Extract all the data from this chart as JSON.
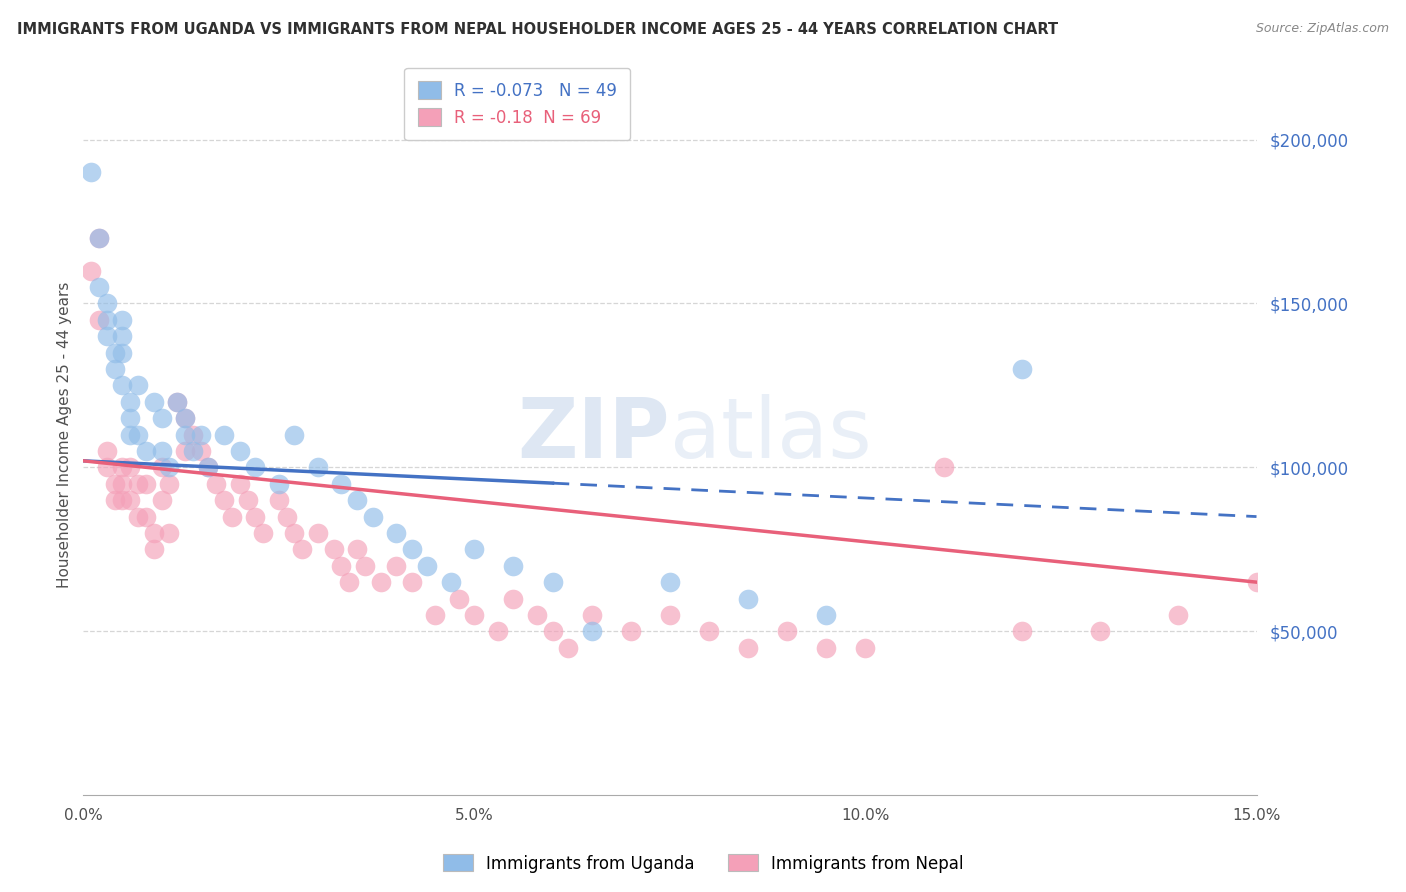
{
  "title": "IMMIGRANTS FROM UGANDA VS IMMIGRANTS FROM NEPAL HOUSEHOLDER INCOME AGES 25 - 44 YEARS CORRELATION CHART",
  "source": "Source: ZipAtlas.com",
  "ylabel": "Householder Income Ages 25 - 44 years",
  "xlim": [
    0.0,
    0.15
  ],
  "ylim": [
    0,
    220000
  ],
  "xticks": [
    0.0,
    0.05,
    0.1,
    0.15
  ],
  "xticklabels": [
    "0.0%",
    "5.0%",
    "10.0%",
    "15.0%"
  ],
  "yticks_right": [
    50000,
    100000,
    150000,
    200000
  ],
  "yticklabels_right": [
    "$50,000",
    "$100,000",
    "$150,000",
    "$200,000"
  ],
  "R_uganda": -0.073,
  "N_uganda": 49,
  "R_nepal": -0.18,
  "N_nepal": 69,
  "color_uganda": "#90bce8",
  "color_nepal": "#f4a0b8",
  "line_color_uganda": "#4472c4",
  "line_color_nepal": "#e8607a",
  "watermark_color": "#c8d8ec",
  "background_color": "#ffffff",
  "grid_color": "#cccccc",
  "title_color": "#303030",
  "axis_label_color": "#505050",
  "right_tick_color": "#4472c4",
  "scatter_alpha": 0.65,
  "scatter_size": 200,
  "uganda_x": [
    0.001,
    0.002,
    0.002,
    0.003,
    0.003,
    0.003,
    0.004,
    0.004,
    0.005,
    0.005,
    0.005,
    0.005,
    0.006,
    0.006,
    0.006,
    0.007,
    0.007,
    0.008,
    0.009,
    0.01,
    0.01,
    0.011,
    0.012,
    0.013,
    0.013,
    0.014,
    0.015,
    0.016,
    0.018,
    0.02,
    0.022,
    0.025,
    0.027,
    0.03,
    0.033,
    0.035,
    0.037,
    0.04,
    0.042,
    0.044,
    0.047,
    0.05,
    0.055,
    0.06,
    0.065,
    0.075,
    0.085,
    0.095,
    0.12
  ],
  "uganda_y": [
    190000,
    170000,
    155000,
    150000,
    145000,
    140000,
    135000,
    130000,
    145000,
    140000,
    135000,
    125000,
    120000,
    115000,
    110000,
    125000,
    110000,
    105000,
    120000,
    115000,
    105000,
    100000,
    120000,
    115000,
    110000,
    105000,
    110000,
    100000,
    110000,
    105000,
    100000,
    95000,
    110000,
    100000,
    95000,
    90000,
    85000,
    80000,
    75000,
    70000,
    65000,
    75000,
    70000,
    65000,
    50000,
    65000,
    60000,
    55000,
    130000
  ],
  "nepal_x": [
    0.001,
    0.002,
    0.002,
    0.003,
    0.003,
    0.004,
    0.004,
    0.005,
    0.005,
    0.005,
    0.006,
    0.006,
    0.007,
    0.007,
    0.008,
    0.008,
    0.009,
    0.009,
    0.01,
    0.01,
    0.011,
    0.011,
    0.012,
    0.013,
    0.013,
    0.014,
    0.015,
    0.016,
    0.017,
    0.018,
    0.019,
    0.02,
    0.021,
    0.022,
    0.023,
    0.025,
    0.026,
    0.027,
    0.028,
    0.03,
    0.032,
    0.033,
    0.034,
    0.035,
    0.036,
    0.038,
    0.04,
    0.042,
    0.045,
    0.048,
    0.05,
    0.053,
    0.055,
    0.058,
    0.06,
    0.062,
    0.065,
    0.07,
    0.075,
    0.08,
    0.085,
    0.09,
    0.095,
    0.1,
    0.11,
    0.12,
    0.13,
    0.14,
    0.15
  ],
  "nepal_y": [
    160000,
    170000,
    145000,
    105000,
    100000,
    95000,
    90000,
    100000,
    95000,
    90000,
    100000,
    90000,
    95000,
    85000,
    95000,
    85000,
    80000,
    75000,
    100000,
    90000,
    95000,
    80000,
    120000,
    115000,
    105000,
    110000,
    105000,
    100000,
    95000,
    90000,
    85000,
    95000,
    90000,
    85000,
    80000,
    90000,
    85000,
    80000,
    75000,
    80000,
    75000,
    70000,
    65000,
    75000,
    70000,
    65000,
    70000,
    65000,
    55000,
    60000,
    55000,
    50000,
    60000,
    55000,
    50000,
    45000,
    55000,
    50000,
    55000,
    50000,
    45000,
    50000,
    45000,
    45000,
    100000,
    50000,
    50000,
    55000,
    65000
  ],
  "line_solid_end_uganda": 0.06,
  "line_solid_end_nepal": 0.15,
  "uganda_line_y0": 102000,
  "uganda_line_y1": 85000,
  "nepal_line_y0": 102000,
  "nepal_line_y1": 65000
}
